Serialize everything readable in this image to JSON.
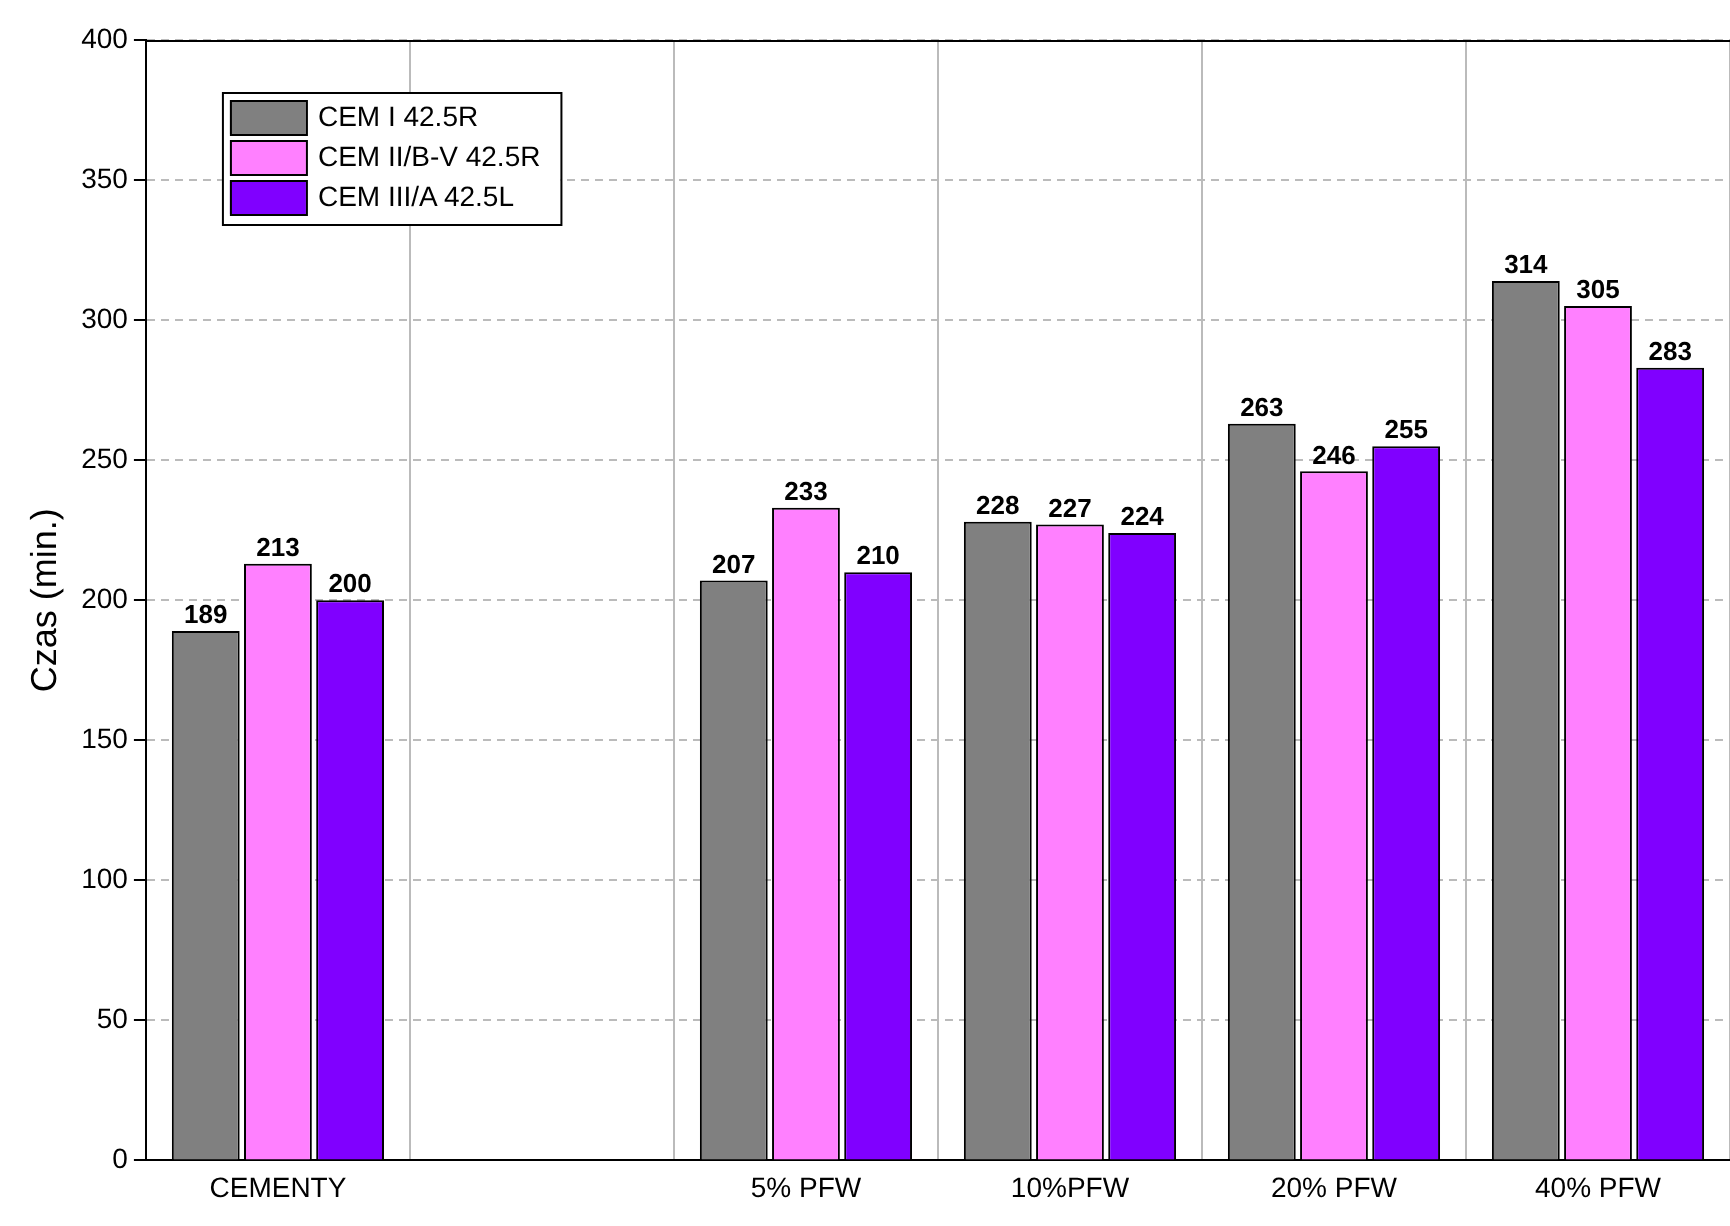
{
  "chart_data": {
    "type": "bar",
    "ylabel": "Czas (min.)",
    "categories": [
      "CEMENTY",
      null,
      "5% PFW",
      "10%PFW",
      "20% PFW",
      "40% PFW"
    ],
    "series": [
      {
        "name": "CEM I 42.5R",
        "color": "#808080",
        "values": [
          189,
          null,
          207,
          228,
          263,
          314
        ]
      },
      {
        "name": "CEM II/B-V 42.5R",
        "color": "#ff80ff",
        "values": [
          213,
          null,
          233,
          227,
          246,
          305
        ]
      },
      {
        "name": "CEM III/A 42.5L",
        "color": "#8000ff",
        "values": [
          200,
          null,
          210,
          224,
          255,
          283
        ]
      }
    ],
    "ylim": [
      0,
      400
    ],
    "yticks": [
      0,
      50,
      100,
      150,
      200,
      250,
      300,
      350,
      400
    ],
    "grid": true,
    "legend": "top left",
    "data_labels": true
  }
}
